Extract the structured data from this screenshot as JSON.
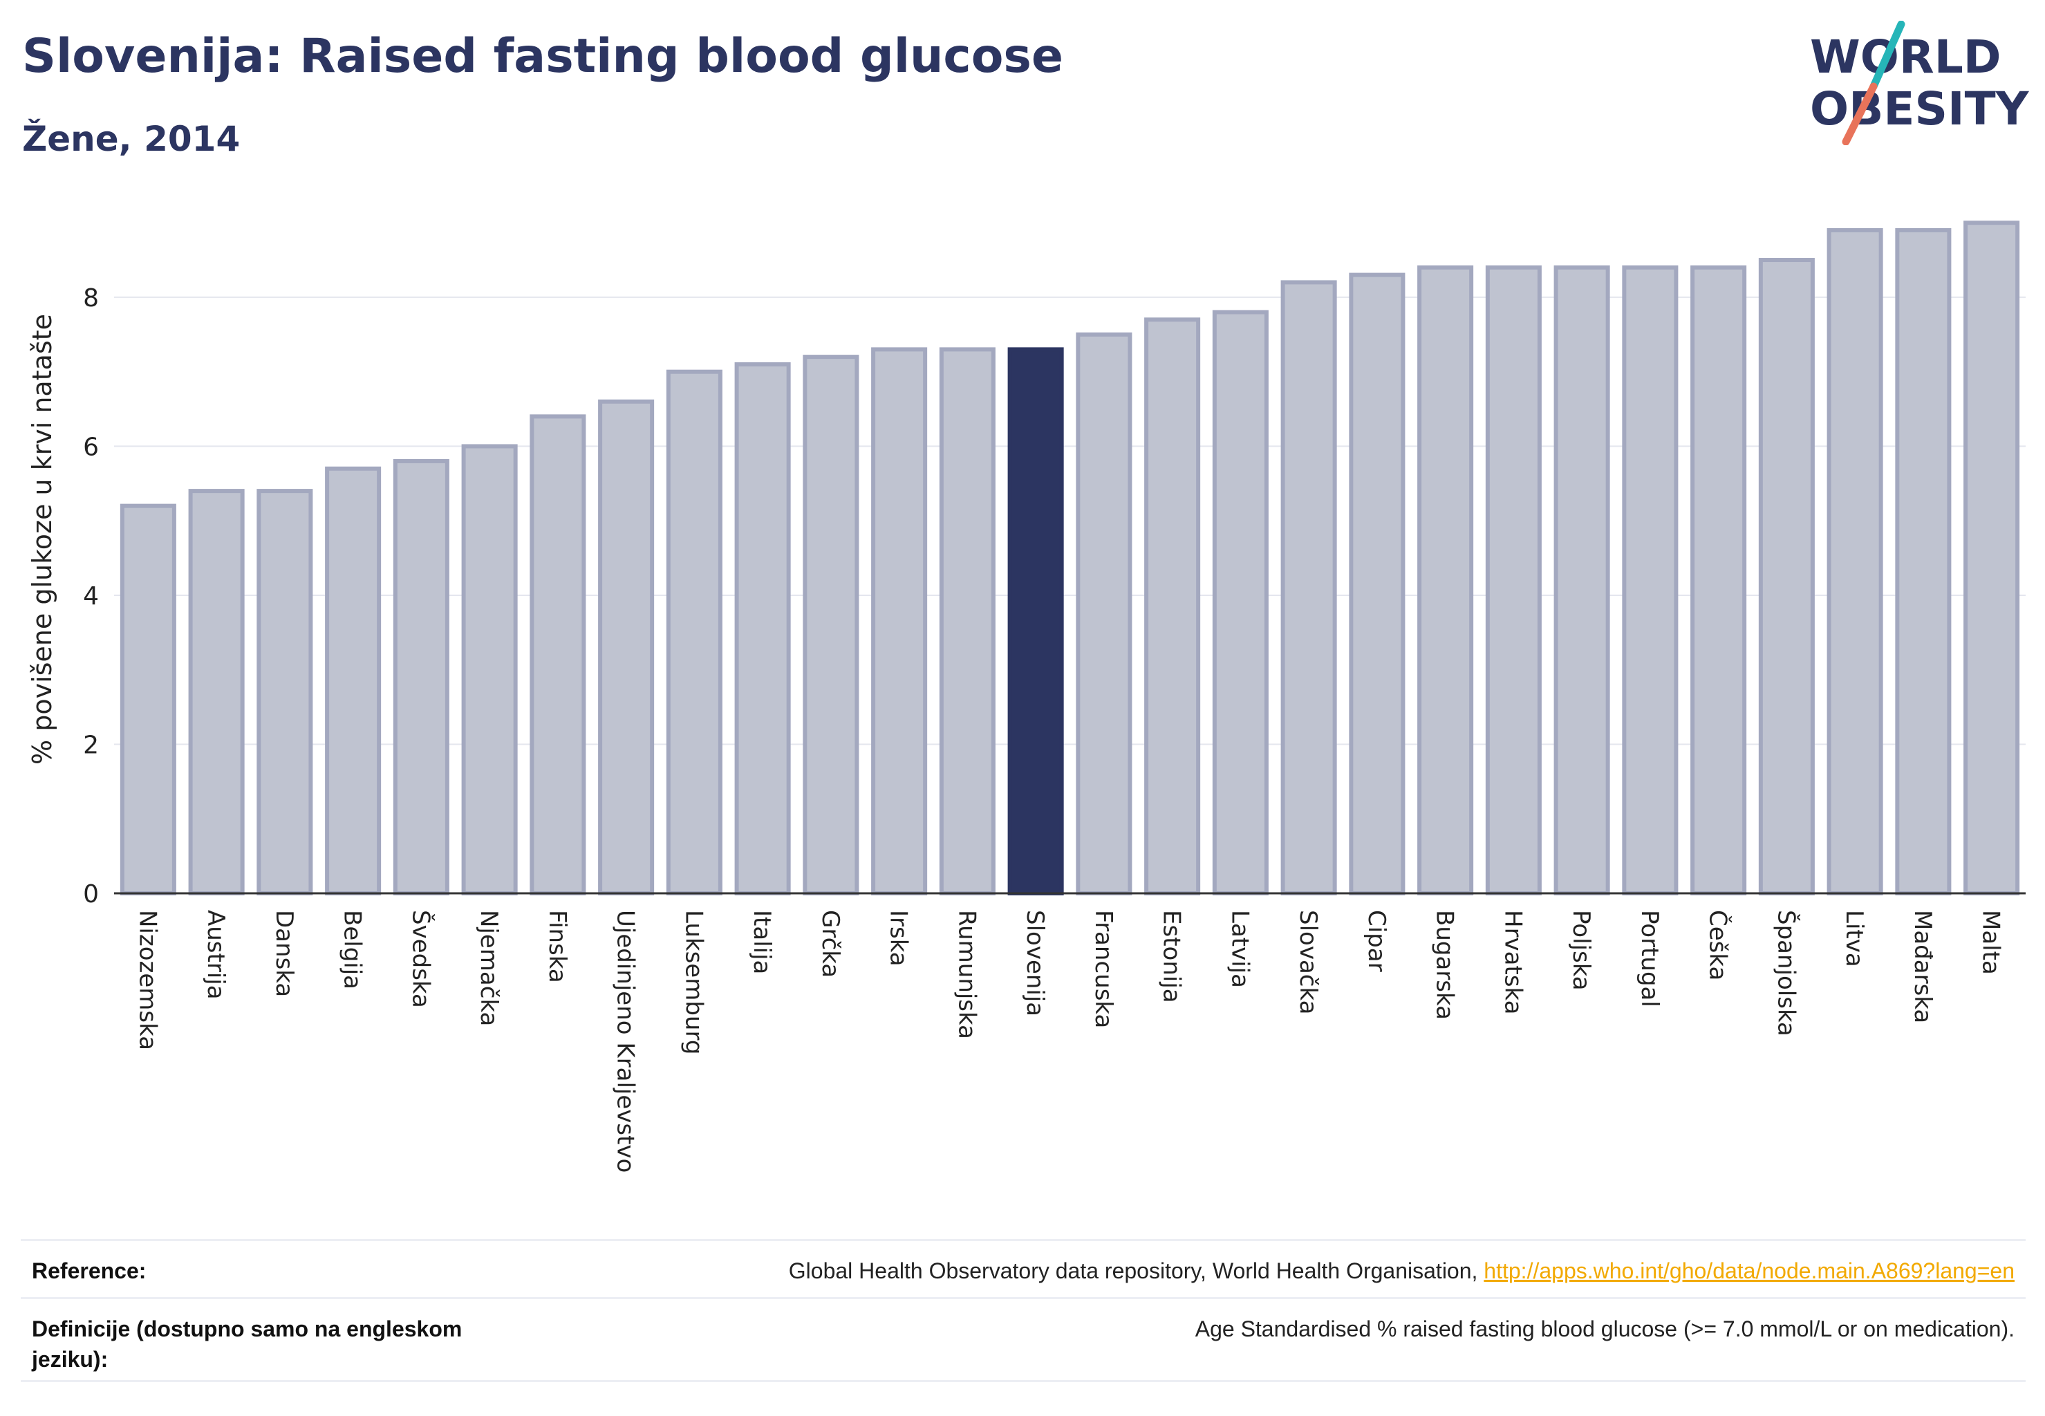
{
  "header": {
    "title": "Slovenija: Raised fasting blood glucose",
    "subtitle": "Žene, 2014"
  },
  "logo": {
    "line1": "WORLD",
    "line2": "OBESITY"
  },
  "colors": {
    "bar_fill": "#bfc3d0",
    "bar_stroke": "#a3a8bf",
    "highlight": "#2c3561",
    "title": "#2c3561",
    "logo_teal": "#26b5b8",
    "logo_coral": "#e8735a",
    "link": "#f2a900"
  },
  "chart_data": {
    "type": "bar",
    "ylabel": "% povišene glukoze u krvi natašte",
    "xlabel": "",
    "ylim": [
      0,
      9.02
    ],
    "yticks": [
      0,
      2,
      4,
      6,
      8
    ],
    "grid": true,
    "highlight_category": "Slovenija",
    "categories": [
      "Nizozemska",
      "Austrija",
      "Danska",
      "Belgija",
      "Švedska",
      "Njemačka",
      "Finska",
      "Ujedinjeno Kraljevstvo",
      "Luksemburg",
      "Italija",
      "Grčka",
      "Irska",
      "Rumunjska",
      "Slovenija",
      "Francuska",
      "Estonija",
      "Latvija",
      "Slovačka",
      "Cipar",
      "Bugarska",
      "Hrvatska",
      "Poljska",
      "Portugal",
      "Češka",
      "Španjolska",
      "Litva",
      "Mađarska",
      "Malta"
    ],
    "values": [
      5.2,
      5.4,
      5.4,
      5.7,
      5.8,
      6.0,
      6.4,
      6.6,
      7.0,
      7.1,
      7.2,
      7.3,
      7.3,
      7.3,
      7.5,
      7.7,
      7.8,
      8.2,
      8.3,
      8.4,
      8.4,
      8.4,
      8.4,
      8.4,
      8.5,
      8.9,
      8.9,
      9.0
    ]
  },
  "footer": {
    "reference_label": "Reference:",
    "reference_text": "Global Health Observatory data repository, World Health Organisation,",
    "reference_link": "http://apps.who.int/gho/data/node.main.A869?lang=en",
    "definition_label": "Definicije (dostupno samo na engleskom jeziku):",
    "definition_text": "Age Standardised % raised fasting blood glucose (>= 7.0 mmol/L or on medication)."
  }
}
